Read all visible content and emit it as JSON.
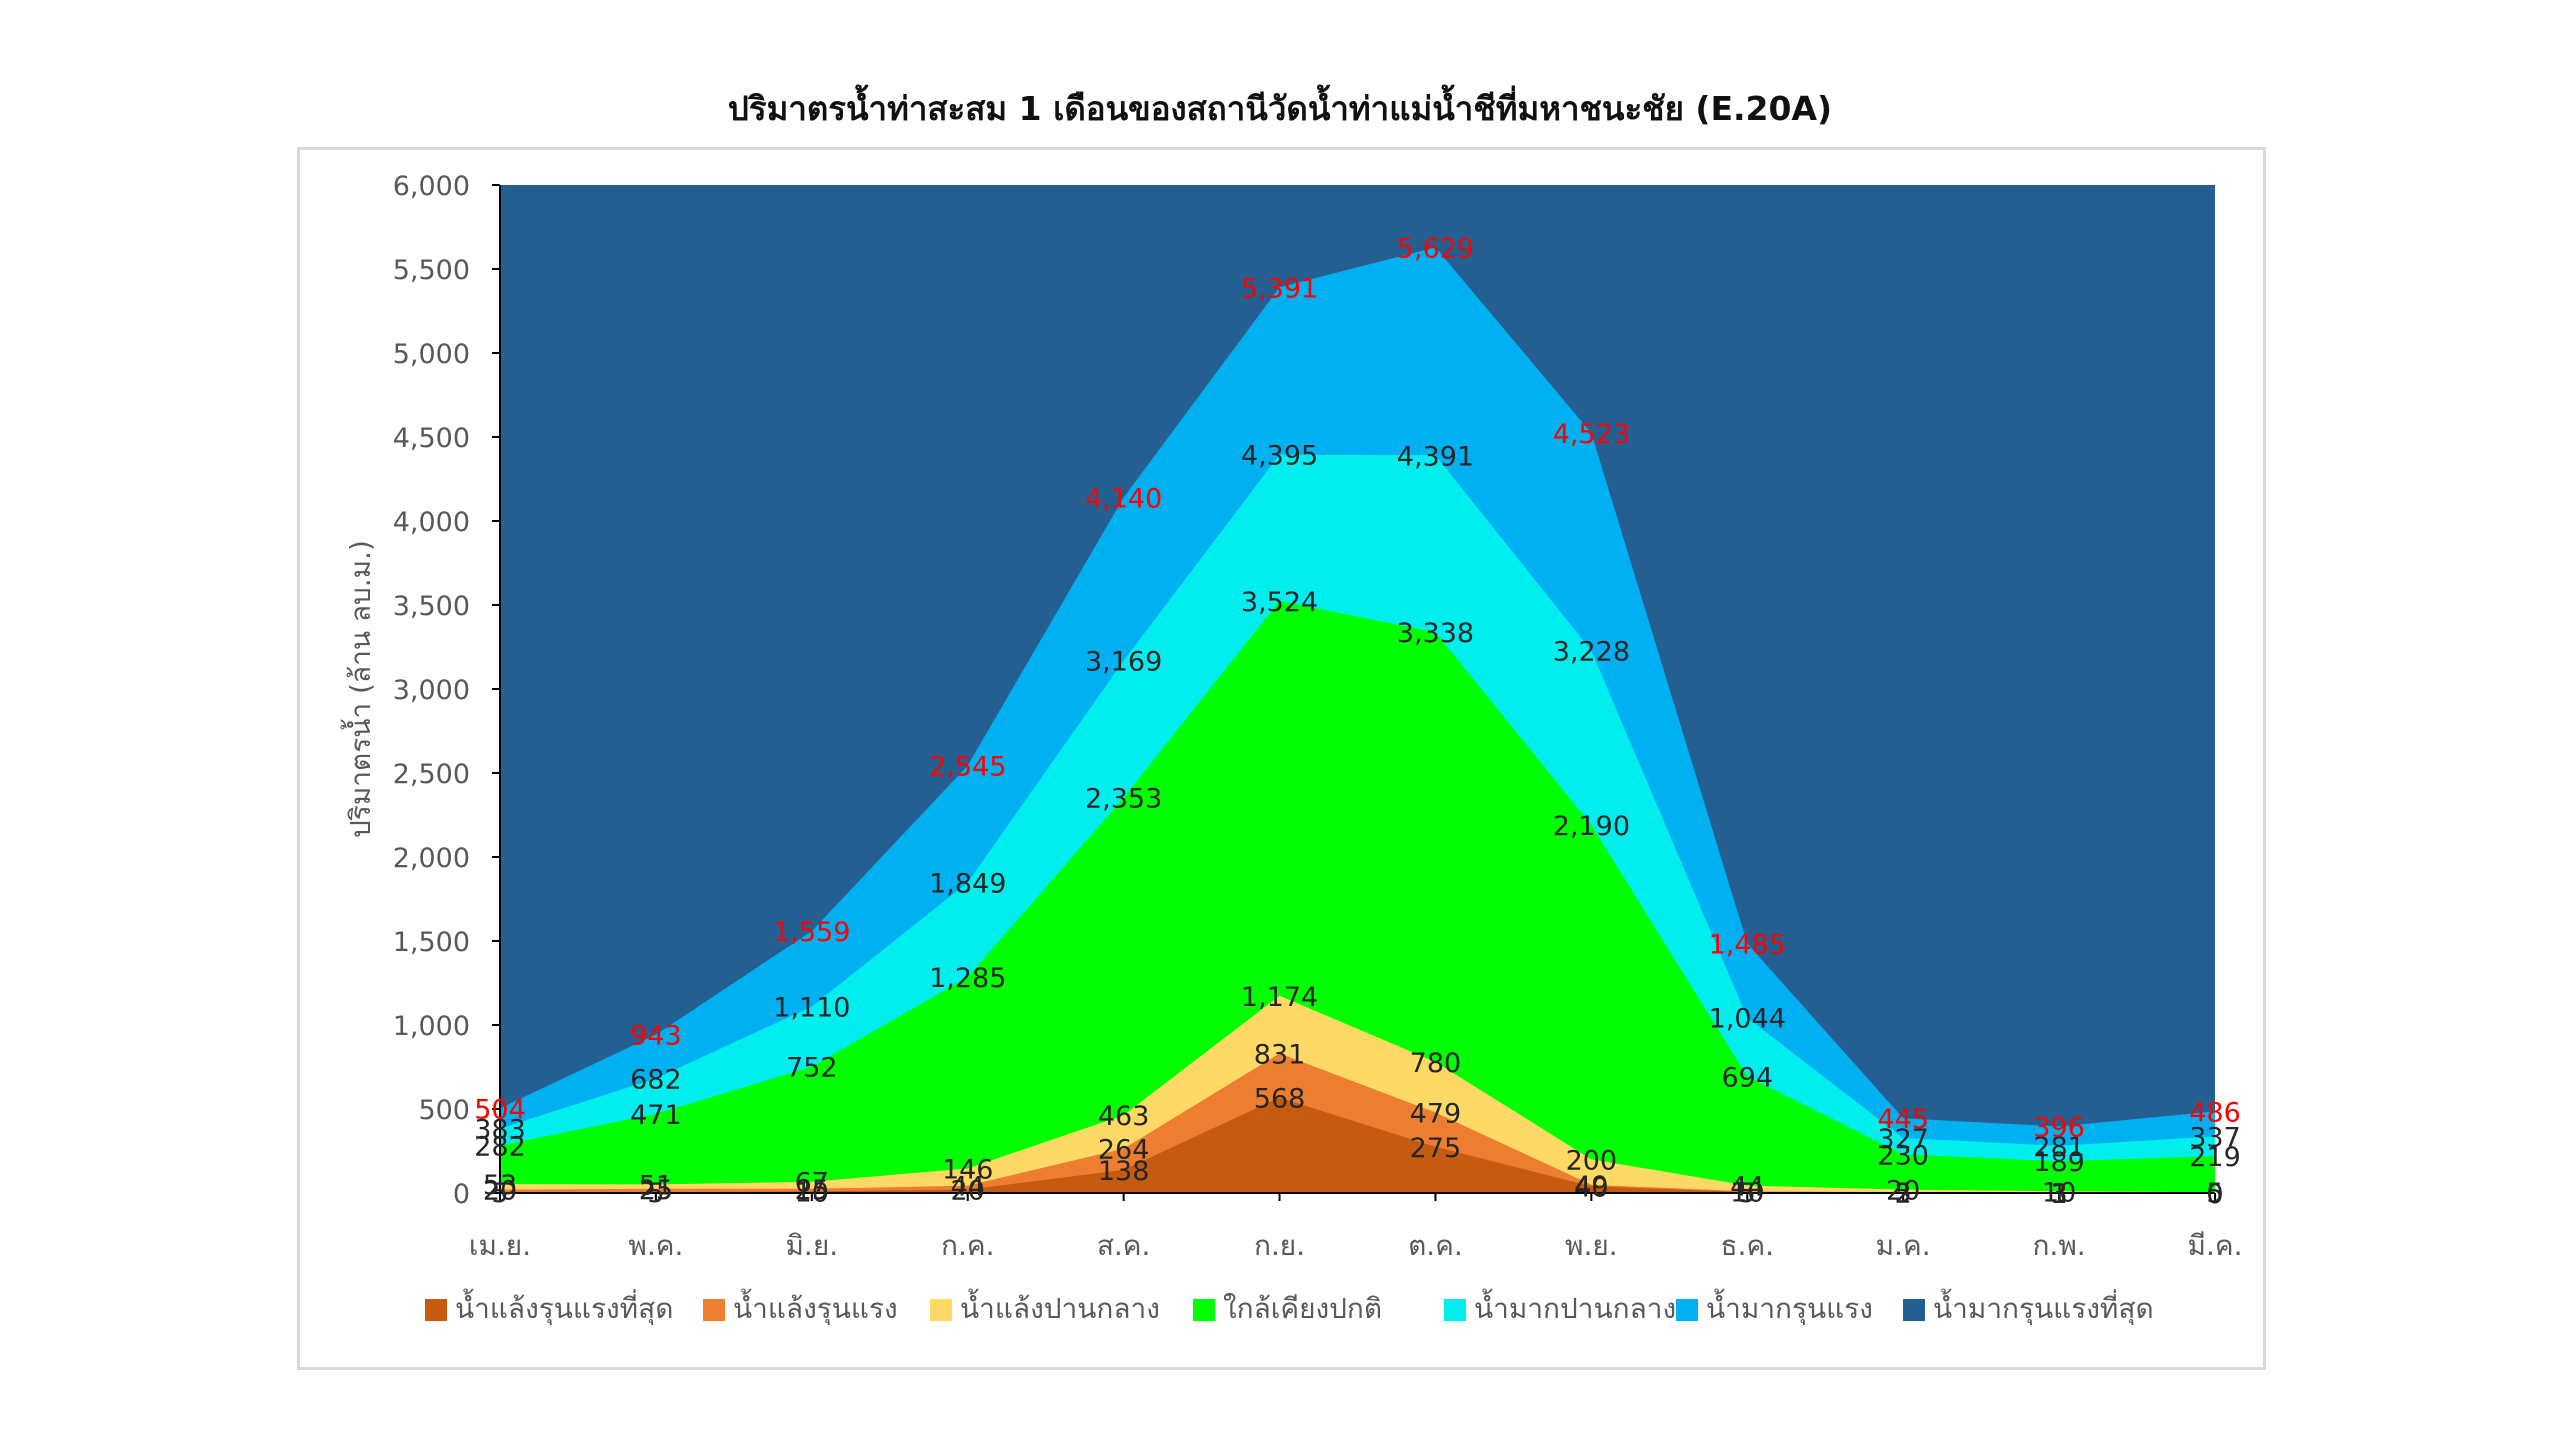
{
  "chart_data": {
    "type": "area",
    "title": "ปริมาตรน้ำท่าสะสม 1 เดือนของสถานีวัดน้ำท่าแม่น้ำชีที่มหาชนะชัย (E.20A)",
    "xlabel": "",
    "ylabel": "ปริมาตรน้ำ (ล้าน ลบ.ม.)",
    "ylim": [
      0,
      6000
    ],
    "yticks": [
      0,
      500,
      1000,
      1500,
      2000,
      2500,
      3000,
      3500,
      4000,
      4500,
      5000,
      5500,
      6000
    ],
    "ytick_labels": [
      "0",
      "500",
      "1,000",
      "1,500",
      "2,000",
      "2,500",
      "3,000",
      "3,500",
      "4,000",
      "4,500",
      "5,000",
      "5,500",
      "6,000"
    ],
    "categories": [
      "เม.ย.",
      "พ.ค.",
      "มิ.ย.",
      "ก.ค.",
      "ส.ค.",
      "ก.ย.",
      "ต.ค.",
      "พ.ย.",
      "ธ.ค.",
      "ม.ค.",
      "ก.พ.",
      "มี.ค."
    ],
    "grid": false,
    "legend_position": "bottom",
    "series": [
      {
        "name": "น้ำแล้งรุนแรงที่สุด",
        "color": "#c55a11",
        "values": [
          5,
          5,
          10,
          20,
          138,
          568,
          275,
          40,
          5,
          2,
          1,
          0
        ]
      },
      {
        "name": "น้ำแล้งรุนแรง",
        "color": "#ed7d31",
        "values": [
          20,
          25,
          25,
          44,
          264,
          831,
          479,
          49,
          10,
          5,
          3,
          0
        ]
      },
      {
        "name": "น้ำแล้งปานกลาง",
        "color": "#ffd966",
        "values": [
          53,
          51,
          67,
          146,
          463,
          1174,
          780,
          200,
          44,
          20,
          10,
          5
        ]
      },
      {
        "name": "ใกล้เคียงปกติ",
        "color": "#00ff00",
        "values": [
          282,
          471,
          752,
          1285,
          2353,
          3524,
          3338,
          2190,
          694,
          230,
          189,
          219
        ]
      },
      {
        "name": "น้ำมากปานกลาง",
        "color": "#00eeee",
        "values": [
          383,
          682,
          1110,
          1849,
          3169,
          4395,
          4391,
          3228,
          1044,
          327,
          281,
          337
        ]
      },
      {
        "name": "น้ำมากรุนแรง",
        "color": "#00b0f0",
        "values": [
          504,
          943,
          1559,
          2545,
          4140,
          5391,
          5629,
          4523,
          1485,
          445,
          396,
          486
        ]
      },
      {
        "name": "น้ำมากรุนแรงที่สุด",
        "color": "#255e91",
        "values": [
          6000,
          6000,
          6000,
          6000,
          6000,
          6000,
          6000,
          6000,
          6000,
          6000,
          6000,
          6000
        ]
      }
    ],
    "data_labels": {
      "dark_color": "#262626",
      "highlight_color": "#ff0000",
      "highlight_series": "น้ำมากรุนแรง",
      "rows": [
        {
          "series": "น้ำแล้งรุนแรงที่สุด",
          "labels": [
            "5",
            "5",
            "10",
            "20",
            "138",
            "568",
            "275",
            "40",
            "5",
            "2",
            "1",
            "0"
          ]
        },
        {
          "series": "น้ำแล้งรุนแรง",
          "labels": [
            "20",
            "25",
            "25",
            "44",
            "264",
            "831",
            "479",
            "49",
            "10",
            "5",
            "3",
            "0"
          ]
        },
        {
          "series": "น้ำแล้งปานกลาง",
          "labels": [
            "53",
            "51",
            "67",
            "146",
            "463",
            "1,174",
            "780",
            "200",
            "44",
            "20",
            "10",
            "5"
          ]
        },
        {
          "series": "ใกล้เคียงปกติ",
          "labels": [
            "282",
            "471",
            "752",
            "1,285",
            "2,353",
            "3,524",
            "3,338",
            "2,190",
            "694",
            "230",
            "189",
            "219"
          ]
        },
        {
          "series": "น้ำมากปานกลาง",
          "labels": [
            "383",
            "682",
            "1,110",
            "1,849",
            "3,169",
            "4,395",
            "4,391",
            "3,228",
            "1,044",
            "327",
            "281",
            "337"
          ]
        },
        {
          "series": "น้ำมากรุนแรง",
          "labels": [
            "504",
            "943",
            "1,559",
            "2,545",
            "4,140",
            "5,391",
            "5,629",
            "4,523",
            "1,485",
            "445",
            "396",
            "486"
          ]
        }
      ]
    }
  },
  "colors": {
    "axis": "#000000",
    "tick_text": "#595959",
    "frame": "#d9d9d9"
  }
}
